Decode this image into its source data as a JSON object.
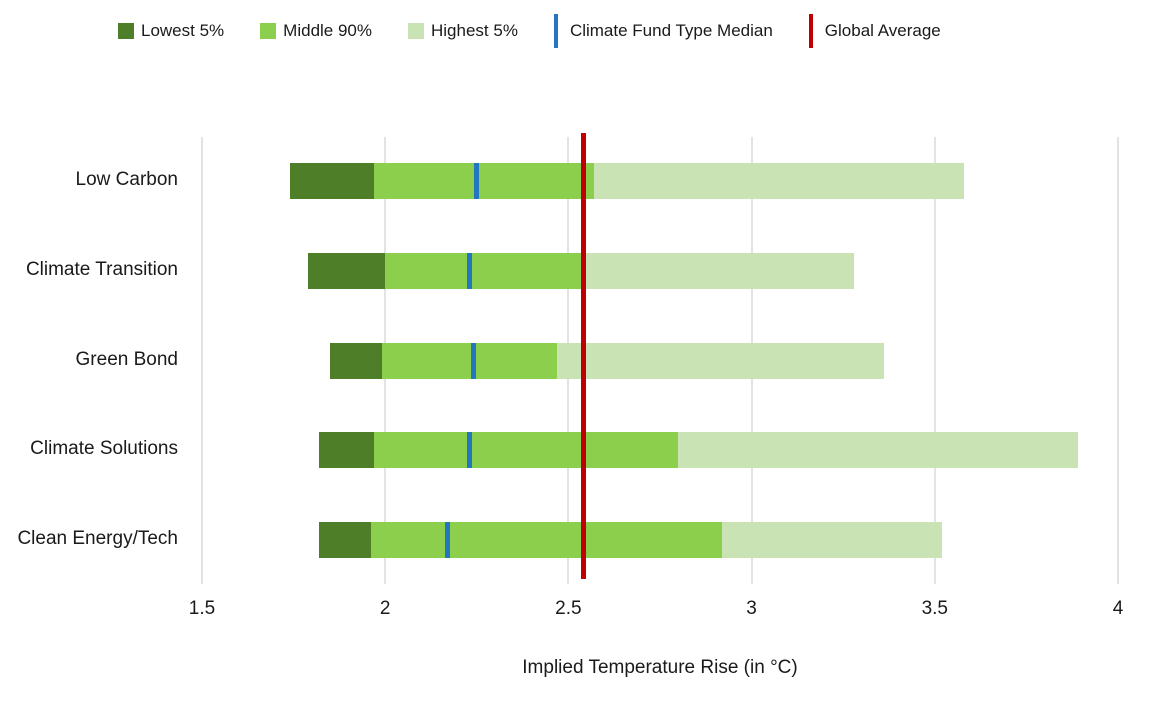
{
  "chart_data": {
    "type": "bar",
    "subtype": "horizontal-stacked-range",
    "title": "",
    "xlabel": "Implied Temperature Rise (in °C)",
    "ylabel": "",
    "xlim": [
      1.5,
      4
    ],
    "x_ticks": [
      1.5,
      2,
      2.5,
      3,
      3.5,
      4
    ],
    "x_tick_labels": [
      "1.5",
      "2",
      "2.5",
      "3",
      "3.5",
      "4"
    ],
    "grid": true,
    "legend_position": "top",
    "categories": [
      "Low Carbon",
      "Climate Transition",
      "Green Bond",
      "Climate Solutions",
      "Clean Energy/Tech"
    ],
    "rows": [
      {
        "category": "Low Carbon",
        "lowest5_start": 1.74,
        "lowest5_end": 1.97,
        "middle90_end": 2.57,
        "highest5_end": 3.58,
        "median": 2.25
      },
      {
        "category": "Climate Transition",
        "lowest5_start": 1.79,
        "lowest5_end": 2.0,
        "middle90_end": 2.54,
        "highest5_end": 3.28,
        "median": 2.23
      },
      {
        "category": "Green Bond",
        "lowest5_start": 1.85,
        "lowest5_end": 1.99,
        "middle90_end": 2.47,
        "highest5_end": 3.36,
        "median": 2.24
      },
      {
        "category": "Climate Solutions",
        "lowest5_start": 1.82,
        "lowest5_end": 1.97,
        "middle90_end": 2.8,
        "highest5_end": 3.89,
        "median": 2.23
      },
      {
        "category": "Clean Energy/Tech",
        "lowest5_start": 1.82,
        "lowest5_end": 1.96,
        "middle90_end": 2.92,
        "highest5_end": 3.52,
        "median": 2.17
      }
    ],
    "global_average": 2.54,
    "legend": {
      "items": [
        {
          "label": "Lowest 5%",
          "swatch": "square",
          "color_key": "lowest5"
        },
        {
          "label": "Middle 90%",
          "swatch": "square",
          "color_key": "middle90"
        },
        {
          "label": "Highest 5%",
          "swatch": "square",
          "color_key": "highest5"
        },
        {
          "label": "Climate Fund Type Median",
          "swatch": "vline",
          "color_key": "median"
        },
        {
          "label": "Global Average",
          "swatch": "vline",
          "color_key": "global_average"
        }
      ]
    },
    "colors": {
      "lowest5": "#4f7e29",
      "middle90": "#8ccf4c",
      "highest5": "#c9e3b4",
      "median": "#2277c0",
      "global_average": "#c00000",
      "gridline": "#e3e3e3",
      "text": "#1a1a1a"
    }
  }
}
